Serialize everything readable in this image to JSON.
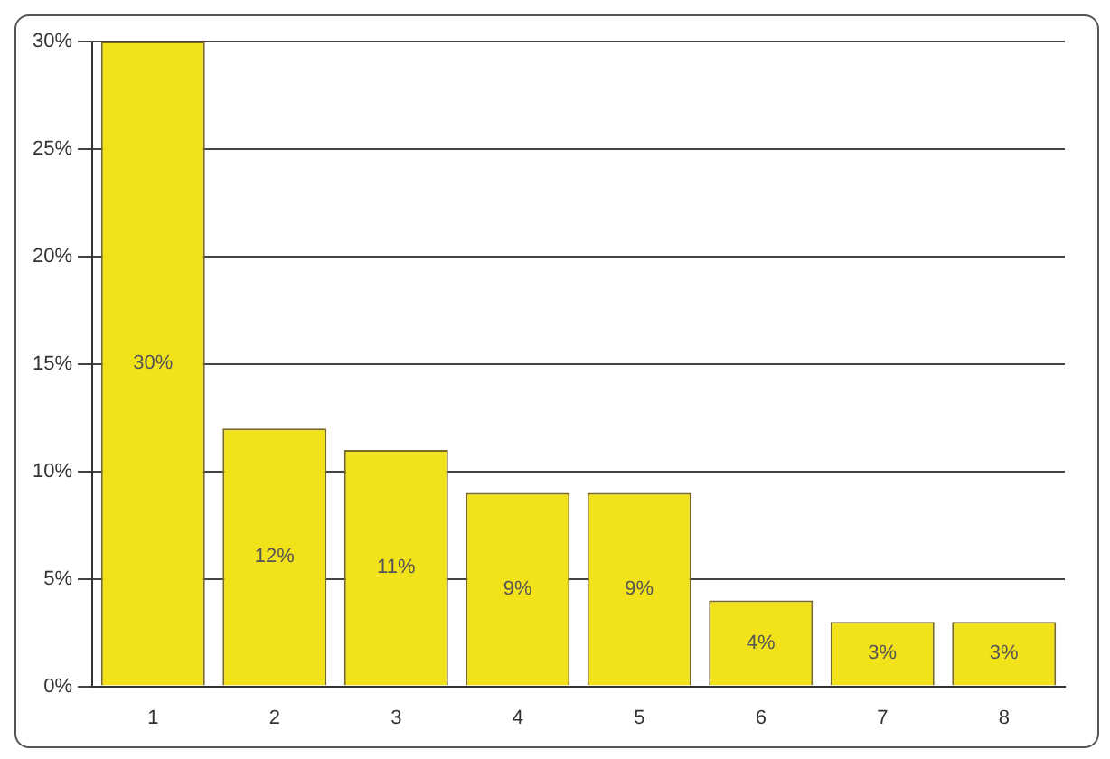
{
  "chart_data": {
    "type": "bar",
    "categories": [
      "1",
      "2",
      "3",
      "4",
      "5",
      "6",
      "7",
      "8"
    ],
    "values": [
      30,
      12,
      11,
      9,
      9,
      4,
      3,
      3
    ],
    "value_labels": [
      "30%",
      "12%",
      "11%",
      "9%",
      "9%",
      "4%",
      "3%",
      "3%"
    ],
    "color": "#f2e21a",
    "ylim": [
      0,
      30
    ],
    "yticks": [
      {
        "value": 0,
        "label": "0%"
      },
      {
        "value": 5,
        "label": "5%"
      },
      {
        "value": 10,
        "label": "10%"
      },
      {
        "value": 15,
        "label": "15%"
      },
      {
        "value": 20,
        "label": "20%"
      },
      {
        "value": 25,
        "label": "25%"
      },
      {
        "value": 30,
        "label": "30%"
      }
    ],
    "grid": "y"
  }
}
